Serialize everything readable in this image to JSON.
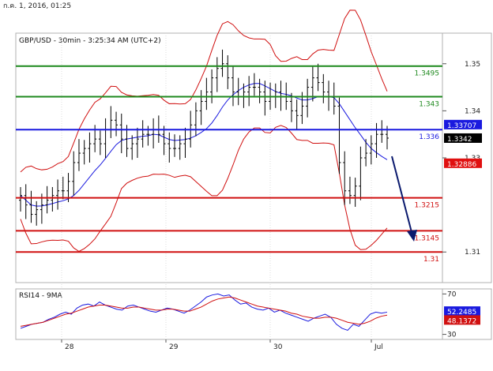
{
  "header": {
    "timestamp": "ก.ค. 1, 2016, 01:25"
  },
  "chart_data": {
    "type": "candlestick",
    "title": "GBP/USD - 30min - 3:25:34 AM (UTC+2)",
    "x_tick_labels": [
      "28",
      "29",
      "30",
      "Jul"
    ],
    "y_tick_labels": [
      "1.35",
      "1.34",
      "1.33",
      "1.31"
    ],
    "ylim": [
      1.3035,
      1.3565
    ],
    "levels": [
      {
        "value": 1.3495,
        "label": "1.3495",
        "color": "#1f8a1f"
      },
      {
        "value": 1.343,
        "label": "1.343",
        "color": "#1f8a1f"
      },
      {
        "value": 1.336,
        "label": "1.336",
        "color": "#1a1adf"
      },
      {
        "value": 1.3215,
        "label": "1.3215",
        "color": "#d01010"
      },
      {
        "value": 1.3145,
        "label": "1.3145",
        "color": "#d01010"
      },
      {
        "value": 1.31,
        "label": "1.31",
        "color": "#d01010"
      }
    ],
    "price_tags": [
      {
        "value": 1.33707,
        "label": "1.33707",
        "bg": "#1a1adf",
        "fg": "#ffffff"
      },
      {
        "value": 1.3342,
        "label": "1.3342",
        "bg": "#000000",
        "fg": "#ffffff"
      },
      {
        "value": 1.32886,
        "label": "1.32886",
        "bg": "#e01010",
        "fg": "#ffffff"
      }
    ],
    "close_series": [
      1.322,
      1.32,
      1.318,
      1.319,
      1.32,
      1.321,
      1.322,
      1.323,
      1.323,
      1.325,
      1.329,
      1.331,
      1.332,
      1.333,
      1.334,
      1.333,
      1.336,
      1.338,
      1.337,
      1.334,
      1.332,
      1.333,
      1.334,
      1.335,
      1.335,
      1.336,
      1.335,
      1.333,
      1.332,
      1.332,
      1.333,
      1.334,
      1.337,
      1.34,
      1.342,
      1.344,
      1.347,
      1.349,
      1.35,
      1.347,
      1.344,
      1.343,
      1.344,
      1.345,
      1.345,
      1.344,
      1.342,
      1.343,
      1.344,
      1.343,
      1.342,
      1.34,
      1.339,
      1.341,
      1.345,
      1.347,
      1.346,
      1.344,
      1.343,
      1.341,
      1.329,
      1.323,
      1.322,
      1.324,
      1.33,
      1.331,
      1.333,
      1.335,
      1.335,
      1.3342
    ],
    "rsi": {
      "label": "RSI14 - 9MA",
      "y_tick_labels": [
        "70",
        "30"
      ],
      "ylim": [
        25,
        75
      ],
      "rsi_value": "52.2485",
      "ma_value": "48.1372",
      "rsi_series": [
        36,
        38,
        40,
        41,
        42,
        45,
        47,
        50,
        52,
        50,
        56,
        59,
        60,
        58,
        62,
        59,
        57,
        55,
        54,
        58,
        59,
        57,
        55,
        53,
        52,
        54,
        56,
        55,
        53,
        51,
        54,
        58,
        62,
        67,
        69,
        70,
        68,
        69,
        64,
        60,
        61,
        57,
        55,
        54,
        56,
        52,
        54,
        51,
        49,
        47,
        45,
        43,
        46,
        48,
        50,
        47,
        40,
        36,
        34,
        40,
        38,
        44,
        50,
        52,
        51,
        52
      ],
      "ma_series": [
        38,
        39,
        40,
        41,
        42,
        44,
        46,
        48,
        50,
        51,
        53,
        55,
        57,
        58,
        59,
        59,
        58,
        57,
        56,
        56,
        57,
        57,
        56,
        55,
        54,
        54,
        55,
        55,
        54,
        53,
        53,
        55,
        57,
        60,
        63,
        65,
        66,
        67,
        66,
        64,
        62,
        60,
        58,
        57,
        56,
        55,
        54,
        53,
        51,
        50,
        48,
        47,
        46,
        46,
        47,
        47,
        46,
        44,
        42,
        41,
        40,
        41,
        43,
        46,
        48,
        49
      ]
    },
    "forecast_arrow": "down",
    "colors": {
      "candle": "#000000",
      "ma_blue": "#1a1adf",
      "bollinger": "#d01010",
      "rsi": "#1a1adf",
      "rsi_ma": "#d01010",
      "panel_border": "#b0b0b0"
    }
  }
}
